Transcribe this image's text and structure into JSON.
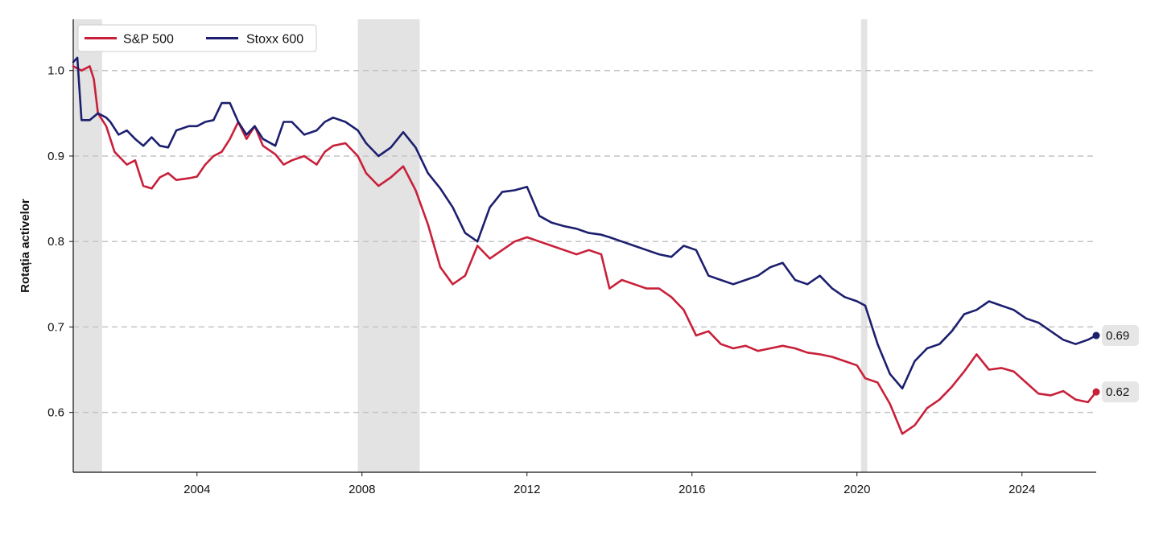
{
  "chart_data": {
    "type": "line",
    "title": "",
    "xlabel": "",
    "ylabel": "Rotația activelor",
    "xlim": [
      2001.0,
      2025.8
    ],
    "ylim": [
      0.53,
      1.06
    ],
    "xticks": [
      2004,
      2008,
      2012,
      2016,
      2020,
      2024
    ],
    "xtick_labels": [
      "2004",
      "2008",
      "2012",
      "2016",
      "2020",
      "2024"
    ],
    "yticks": [
      0.6,
      0.7,
      0.8,
      0.9,
      1.0
    ],
    "ytick_labels": [
      "0.6",
      "0.7",
      "0.8",
      "0.9",
      "1.0"
    ],
    "grid": "horizontal dashed",
    "legend_position": "top-left",
    "recession_shading": [
      [
        2001.0,
        2001.7
      ],
      [
        2007.9,
        2009.4
      ],
      [
        2020.1,
        2020.25
      ]
    ],
    "series": [
      {
        "name": "S&P 500",
        "color": "#c8203a",
        "end_label": "0.62",
        "x": [
          2001.0,
          2001.2,
          2001.4,
          2001.5,
          2001.6,
          2001.8,
          2002.0,
          2002.3,
          2002.5,
          2002.7,
          2002.9,
          2003.1,
          2003.3,
          2003.5,
          2003.8,
          2004.0,
          2004.2,
          2004.4,
          2004.6,
          2004.8,
          2005.0,
          2005.2,
          2005.4,
          2005.6,
          2005.9,
          2006.1,
          2006.3,
          2006.6,
          2006.9,
          2007.1,
          2007.3,
          2007.6,
          2007.9,
          2008.1,
          2008.4,
          2008.7,
          2009.0,
          2009.3,
          2009.6,
          2009.9,
          2010.2,
          2010.5,
          2010.8,
          2011.1,
          2011.4,
          2011.7,
          2012.0,
          2012.3,
          2012.6,
          2012.9,
          2013.2,
          2013.5,
          2013.8,
          2014.0,
          2014.3,
          2014.6,
          2014.9,
          2015.2,
          2015.5,
          2015.8,
          2016.1,
          2016.4,
          2016.7,
          2017.0,
          2017.3,
          2017.6,
          2017.9,
          2018.2,
          2018.5,
          2018.8,
          2019.1,
          2019.4,
          2019.7,
          2020.0,
          2020.2,
          2020.5,
          2020.8,
          2021.1,
          2021.4,
          2021.7,
          2022.0,
          2022.3,
          2022.6,
          2022.9,
          2023.2,
          2023.5,
          2023.8,
          2024.1,
          2024.4,
          2024.7,
          2025.0,
          2025.3,
          2025.6,
          2025.8
        ],
        "values": [
          1.005,
          1.0,
          1.005,
          0.99,
          0.95,
          0.935,
          0.905,
          0.89,
          0.895,
          0.865,
          0.862,
          0.875,
          0.88,
          0.872,
          0.874,
          0.876,
          0.89,
          0.9,
          0.905,
          0.92,
          0.94,
          0.92,
          0.935,
          0.912,
          0.902,
          0.89,
          0.895,
          0.9,
          0.89,
          0.905,
          0.912,
          0.915,
          0.9,
          0.88,
          0.865,
          0.875,
          0.888,
          0.86,
          0.82,
          0.77,
          0.75,
          0.76,
          0.795,
          0.78,
          0.79,
          0.8,
          0.805,
          0.8,
          0.795,
          0.79,
          0.785,
          0.79,
          0.785,
          0.745,
          0.755,
          0.75,
          0.745,
          0.745,
          0.735,
          0.72,
          0.69,
          0.695,
          0.68,
          0.675,
          0.678,
          0.672,
          0.675,
          0.678,
          0.675,
          0.67,
          0.668,
          0.665,
          0.66,
          0.655,
          0.64,
          0.635,
          0.61,
          0.575,
          0.585,
          0.605,
          0.615,
          0.63,
          0.648,
          0.668,
          0.65,
          0.652,
          0.648,
          0.635,
          0.622,
          0.62,
          0.625,
          0.615,
          0.612,
          0.624
        ]
      },
      {
        "name": "Stoxx 600",
        "color": "#1c1f6e",
        "end_label": "0.69",
        "x": [
          2001.0,
          2001.1,
          2001.2,
          2001.4,
          2001.6,
          2001.8,
          2001.9,
          2002.1,
          2002.3,
          2002.5,
          2002.7,
          2002.9,
          2003.1,
          2003.3,
          2003.5,
          2003.8,
          2004.0,
          2004.2,
          2004.4,
          2004.6,
          2004.8,
          2005.0,
          2005.2,
          2005.4,
          2005.6,
          2005.9,
          2006.1,
          2006.3,
          2006.6,
          2006.9,
          2007.1,
          2007.3,
          2007.6,
          2007.9,
          2008.1,
          2008.4,
          2008.7,
          2009.0,
          2009.3,
          2009.6,
          2009.9,
          2010.2,
          2010.5,
          2010.8,
          2011.1,
          2011.4,
          2011.7,
          2012.0,
          2012.3,
          2012.6,
          2012.9,
          2013.2,
          2013.5,
          2013.8,
          2014.0,
          2014.3,
          2014.6,
          2014.9,
          2015.2,
          2015.5,
          2015.8,
          2016.1,
          2016.4,
          2016.7,
          2017.0,
          2017.3,
          2017.6,
          2017.9,
          2018.2,
          2018.5,
          2018.8,
          2019.1,
          2019.4,
          2019.7,
          2020.0,
          2020.2,
          2020.5,
          2020.8,
          2021.1,
          2021.4,
          2021.7,
          2022.0,
          2022.3,
          2022.6,
          2022.9,
          2023.2,
          2023.5,
          2023.8,
          2024.1,
          2024.4,
          2024.7,
          2025.0,
          2025.3,
          2025.6,
          2025.8
        ],
        "values": [
          1.01,
          1.015,
          0.942,
          0.942,
          0.95,
          0.945,
          0.94,
          0.925,
          0.93,
          0.92,
          0.912,
          0.922,
          0.912,
          0.91,
          0.93,
          0.935,
          0.935,
          0.94,
          0.942,
          0.962,
          0.962,
          0.94,
          0.925,
          0.935,
          0.92,
          0.912,
          0.94,
          0.94,
          0.925,
          0.93,
          0.94,
          0.945,
          0.94,
          0.93,
          0.915,
          0.9,
          0.91,
          0.928,
          0.91,
          0.88,
          0.862,
          0.84,
          0.81,
          0.8,
          0.84,
          0.858,
          0.86,
          0.864,
          0.83,
          0.822,
          0.818,
          0.815,
          0.81,
          0.808,
          0.805,
          0.8,
          0.795,
          0.79,
          0.785,
          0.782,
          0.795,
          0.79,
          0.76,
          0.755,
          0.75,
          0.755,
          0.76,
          0.77,
          0.775,
          0.755,
          0.75,
          0.76,
          0.745,
          0.735,
          0.73,
          0.725,
          0.68,
          0.645,
          0.628,
          0.66,
          0.675,
          0.68,
          0.695,
          0.715,
          0.72,
          0.73,
          0.725,
          0.72,
          0.71,
          0.705,
          0.695,
          0.685,
          0.68,
          0.685,
          0.69
        ]
      }
    ]
  }
}
